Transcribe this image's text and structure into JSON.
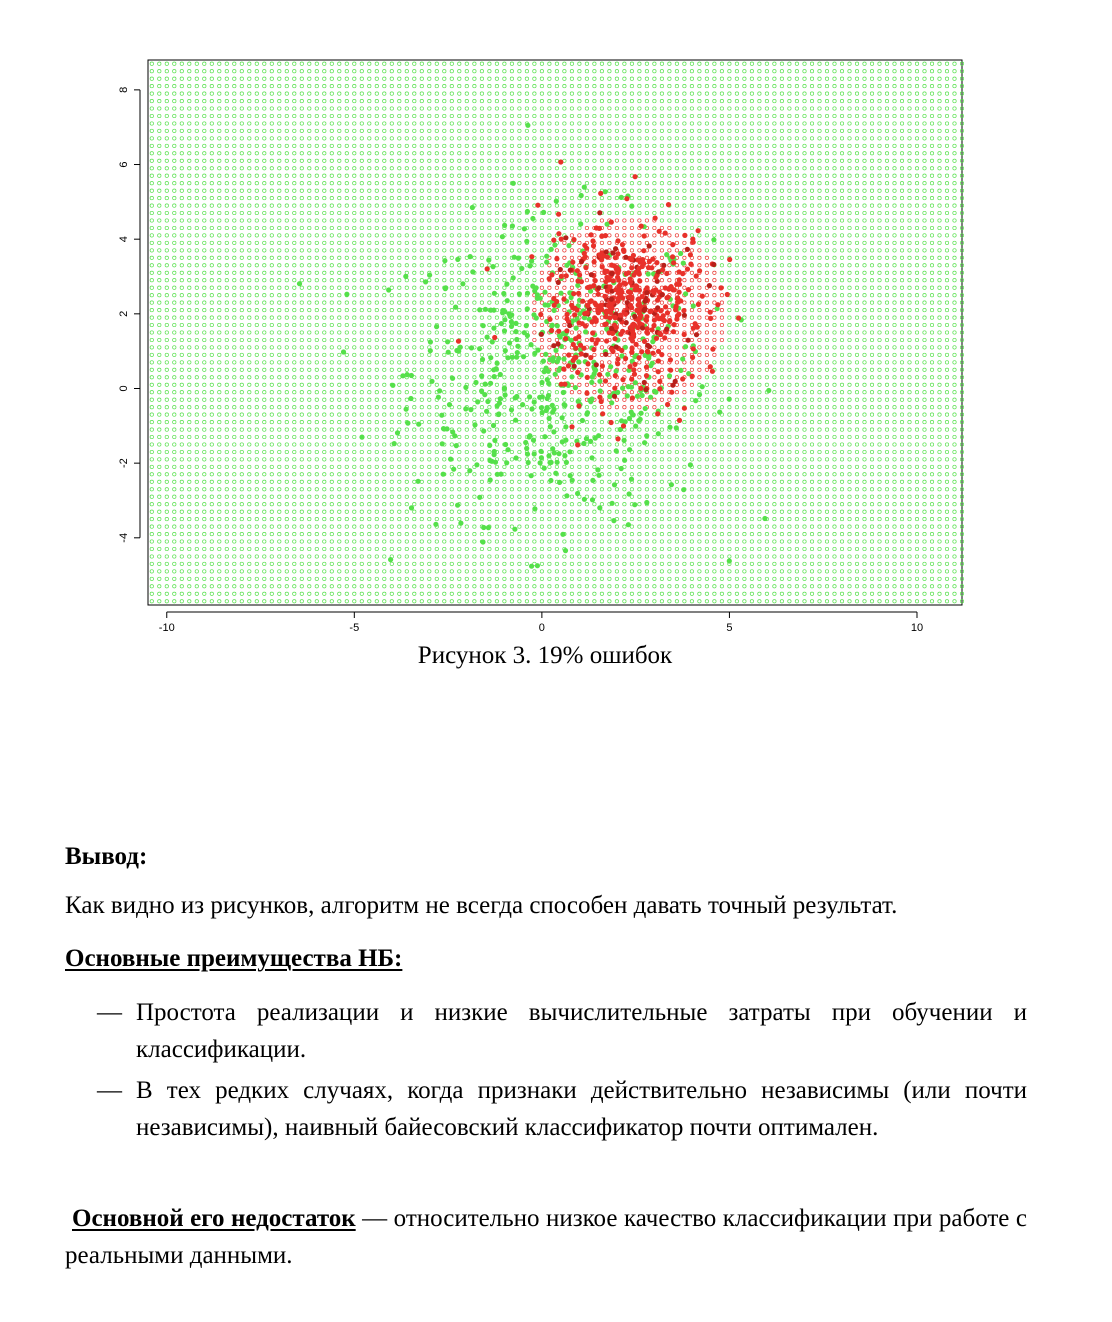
{
  "chart_data": {
    "type": "scatter",
    "xlim": [
      -10.5,
      11.2
    ],
    "ylim": [
      -5.8,
      8.8
    ],
    "x_ticks": [
      -10,
      -5,
      0,
      5,
      10
    ],
    "y_ticks": [
      -4,
      -2,
      0,
      2,
      4,
      6,
      8
    ],
    "x_tick_labels": [
      "-10",
      "-5",
      "0",
      "5",
      "10"
    ],
    "y_tick_labels": [
      "-4",
      "-2",
      "0",
      "2",
      "4",
      "6",
      "8"
    ],
    "background_grid": {
      "description": "grid of open circles colored by predicted class",
      "step": 0.2,
      "class_b_region": {
        "center": [
          2.3,
          2.0
        ],
        "radius": 2.6
      }
    },
    "series": [
      {
        "class": "A",
        "color": "#55e04a",
        "center": [
          0.5,
          0.5
        ],
        "spread": 2.0
      },
      {
        "class": "B",
        "color": "#e8312a",
        "center": [
          2.2,
          2.2
        ],
        "spread": 1.1
      }
    ],
    "colors": {
      "class_a": "#55e04a",
      "class_b": "#e8312a",
      "class_b_dark": "#b8201a"
    }
  },
  "caption": "Рисунок 3. 19% ошибок",
  "conclusion": {
    "title": "Вывод:",
    "text": "Как видно из рисунков, алгоритм не всегда способен давать точный результат.",
    "advantages_title": "Основные преимущества НБ:",
    "dash": "—",
    "advantages": [
      "Простота реализации и низкие вычислительные затраты при обучении и классификации.",
      "В тех редких случаях, когда признаки действительно независимы (или почти независимы), наивный байесовский классификатор почти оптимален."
    ],
    "drawback_title": "Основной его недостаток",
    "drawback_text": " — относительно низкое качество классификации при работе с реальными данными."
  }
}
